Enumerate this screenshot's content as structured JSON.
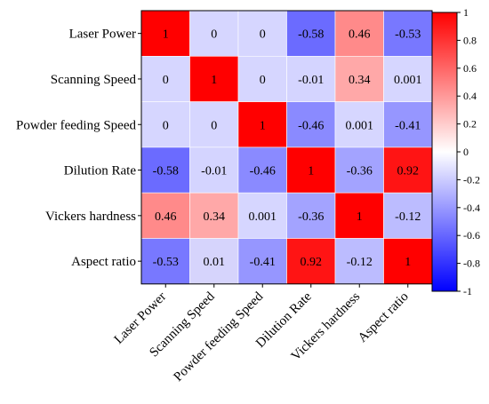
{
  "chart_data": {
    "type": "heatmap",
    "title": "",
    "xlabel": "",
    "ylabel": "",
    "rows": [
      "Laser Power",
      "Scanning Speed",
      "Powder feeding Speed",
      "Dilution Rate",
      "Vickers hardness",
      "Aspect ratio"
    ],
    "columns": [
      "Laser Power",
      "Scanning Speed",
      "Powder feeding Speed",
      "Dilution Rate",
      "Vickers hardness",
      "Aspect ratio"
    ],
    "values": [
      [
        1,
        0,
        0,
        -0.58,
        0.46,
        -0.53
      ],
      [
        0,
        1,
        0,
        -0.01,
        0.34,
        0.001
      ],
      [
        0,
        0,
        1,
        -0.46,
        0.001,
        -0.41
      ],
      [
        -0.58,
        -0.01,
        -0.46,
        1,
        -0.36,
        0.92
      ],
      [
        0.46,
        0.34,
        0.001,
        -0.36,
        1,
        -0.12
      ],
      [
        -0.53,
        0.01,
        -0.41,
        0.92,
        -0.12,
        1
      ]
    ],
    "value_labels": [
      [
        "1",
        "0",
        "0",
        "-0.58",
        "0.46",
        "-0.53"
      ],
      [
        "0",
        "1",
        "0",
        "-0.01",
        "0.34",
        "0.001"
      ],
      [
        "0",
        "0",
        "1",
        "-0.46",
        "0.001",
        "-0.41"
      ],
      [
        "-0.58",
        "-0.01",
        "-0.46",
        "1",
        "-0.36",
        "0.92"
      ],
      [
        "0.46",
        "0.34",
        "0.001",
        "-0.36",
        "1",
        "-0.12"
      ],
      [
        "-0.53",
        "0.01",
        "-0.41",
        "0.92",
        "-0.12",
        "1"
      ]
    ],
    "colorbar": {
      "range": [
        -1,
        1
      ],
      "ticks": [
        "1",
        "0.8",
        "0.6",
        "0.4",
        "0.2",
        "0",
        "-0.2",
        "-0.4",
        "-0.6",
        "-0.8",
        "-1"
      ],
      "colors": {
        "low": "#0000ff",
        "mid": "#ffffff",
        "high": "#ff0000"
      }
    }
  }
}
